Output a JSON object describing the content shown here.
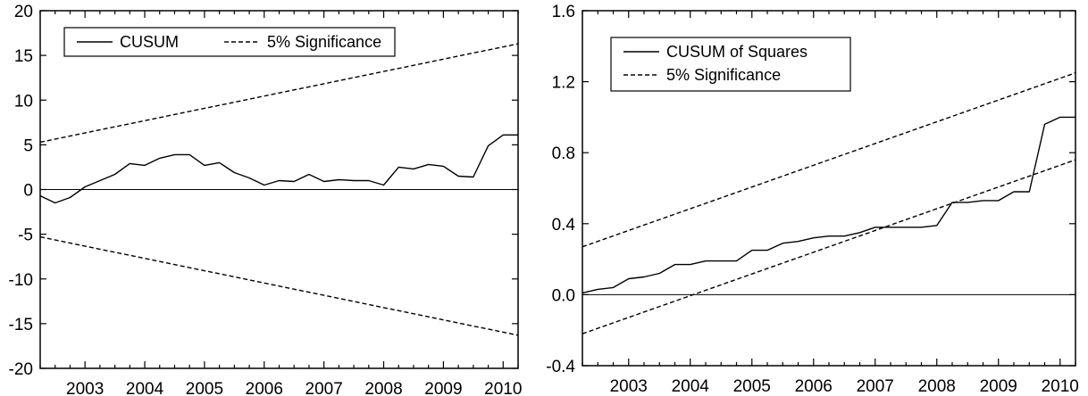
{
  "chart_data": [
    {
      "type": "line",
      "title": "",
      "xlabel": "",
      "ylabel": "",
      "ylim": [
        -20,
        20
      ],
      "yticks": [
        "20",
        "15",
        "10",
        "5",
        "0",
        "-5",
        "-10",
        "-15",
        "-20"
      ],
      "ytick_values": [
        20,
        15,
        10,
        5,
        0,
        -5,
        -10,
        -15,
        -20
      ],
      "xlim": [
        2002.25,
        2010.25
      ],
      "xticks": [
        "2003",
        "2004",
        "2005",
        "2006",
        "2007",
        "2008",
        "2009",
        "2010"
      ],
      "xtick_values": [
        2003,
        2004,
        2005,
        2006,
        2007,
        2008,
        2009,
        2010
      ],
      "grid": false,
      "zero_line": true,
      "legend": {
        "placement": "top-left",
        "entries": [
          "CUSUM",
          "5% Significance"
        ]
      },
      "series": [
        {
          "name": "CUSUM",
          "style": "solid",
          "x": [
            2002.25,
            2002.5,
            2002.75,
            2003.0,
            2003.25,
            2003.5,
            2003.75,
            2004.0,
            2004.25,
            2004.5,
            2004.75,
            2005.0,
            2005.25,
            2005.5,
            2005.75,
            2006.0,
            2006.25,
            2006.5,
            2006.75,
            2007.0,
            2007.25,
            2007.5,
            2007.75,
            2008.0,
            2008.25,
            2008.5,
            2008.75,
            2009.0,
            2009.25,
            2009.5,
            2009.75,
            2010.0,
            2010.25
          ],
          "values": [
            -0.7,
            -1.5,
            -0.9,
            0.3,
            1.0,
            1.7,
            2.9,
            2.7,
            3.5,
            3.9,
            3.9,
            2.7,
            3.0,
            1.9,
            1.3,
            0.5,
            1.0,
            0.9,
            1.7,
            0.9,
            1.1,
            1.0,
            1.0,
            0.5,
            2.5,
            2.3,
            2.8,
            2.6,
            1.5,
            1.4,
            4.9,
            6.1,
            6.1
          ]
        },
        {
          "name": "5% Significance",
          "style": "dashed",
          "x": [
            2002.25,
            2010.25
          ],
          "values": [
            5.3,
            16.3
          ]
        },
        {
          "name": "5% Significance",
          "style": "dashed",
          "x": [
            2002.25,
            2010.25
          ],
          "values": [
            -5.3,
            -16.3
          ]
        }
      ]
    },
    {
      "type": "line",
      "title": "",
      "xlabel": "",
      "ylabel": "",
      "ylim": [
        -0.4,
        1.6
      ],
      "yticks": [
        "1.6",
        "1.2",
        "0.8",
        "0.4",
        "0.0",
        "-0.4"
      ],
      "ytick_values": [
        1.6,
        1.2,
        0.8,
        0.4,
        0.0,
        -0.4
      ],
      "xlim": [
        2002.25,
        2010.25
      ],
      "xticks": [
        "2003",
        "2004",
        "2005",
        "2006",
        "2007",
        "2008",
        "2009",
        "2010"
      ],
      "xtick_values": [
        2003,
        2004,
        2005,
        2006,
        2007,
        2008,
        2009,
        2010
      ],
      "grid": false,
      "zero_line": true,
      "legend": {
        "placement": "top-left",
        "entries": [
          "CUSUM of Squares",
          "5% Significance"
        ]
      },
      "series": [
        {
          "name": "CUSUM of Squares",
          "style": "solid",
          "x": [
            2002.25,
            2002.5,
            2002.75,
            2003.0,
            2003.25,
            2003.5,
            2003.75,
            2004.0,
            2004.25,
            2004.5,
            2004.75,
            2005.0,
            2005.25,
            2005.5,
            2005.75,
            2006.0,
            2006.25,
            2006.5,
            2006.75,
            2007.0,
            2007.25,
            2007.5,
            2007.75,
            2008.0,
            2008.25,
            2008.5,
            2008.75,
            2009.0,
            2009.25,
            2009.5,
            2009.75,
            2010.0,
            2010.25
          ],
          "values": [
            0.01,
            0.03,
            0.04,
            0.09,
            0.1,
            0.12,
            0.17,
            0.17,
            0.19,
            0.19,
            0.19,
            0.25,
            0.25,
            0.29,
            0.3,
            0.32,
            0.33,
            0.33,
            0.35,
            0.38,
            0.38,
            0.38,
            0.38,
            0.39,
            0.52,
            0.52,
            0.53,
            0.53,
            0.58,
            0.58,
            0.96,
            1.0,
            1.0
          ]
        },
        {
          "name": "5% Significance",
          "style": "dashed",
          "x": [
            2002.25,
            2010.25
          ],
          "values": [
            0.27,
            1.25
          ]
        },
        {
          "name": "5% Significance",
          "style": "dashed",
          "x": [
            2002.25,
            2010.25
          ],
          "values": [
            -0.22,
            0.76
          ]
        }
      ]
    }
  ]
}
